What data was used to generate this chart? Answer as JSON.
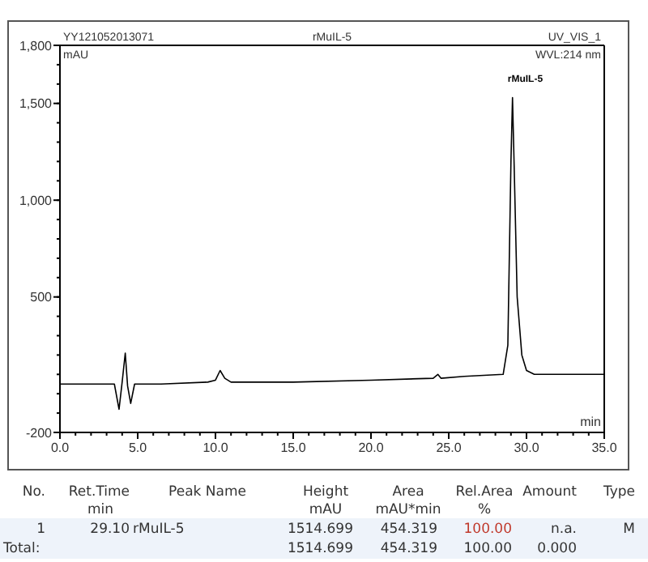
{
  "chart_data": {
    "type": "line",
    "title": "rMuIL-5",
    "xlabel": "min",
    "ylabel": "mAU",
    "x": [
      0,
      3.5,
      3.8,
      4.0,
      4.2,
      4.35,
      4.55,
      4.8,
      5.0,
      6.5,
      9.5,
      10.0,
      10.3,
      10.6,
      11,
      15,
      20,
      24,
      24.3,
      24.5,
      26,
      28.5,
      28.8,
      29.0,
      29.1,
      29.2,
      29.4,
      29.7,
      30.0,
      30.5,
      32,
      35
    ],
    "series": [
      {
        "color": "#000000",
        "values": [
          50,
          50,
          -80,
          60,
          210,
          40,
          -50,
          50,
          50,
          50,
          60,
          70,
          120,
          80,
          60,
          60,
          70,
          80,
          100,
          80,
          90,
          100,
          250,
          1200,
          1530,
          1200,
          500,
          200,
          120,
          100,
          100,
          100
        ]
      }
    ],
    "xlim": [
      0,
      35
    ],
    "xticks": [
      {
        "value": 0,
        "label": "0.0"
      },
      {
        "value": 5,
        "label": "5.0"
      },
      {
        "value": 10,
        "label": "10.0"
      },
      {
        "value": 15,
        "label": "15.0"
      },
      {
        "value": 20,
        "label": "20.0"
      },
      {
        "value": 25,
        "label": "25.0"
      },
      {
        "value": 30,
        "label": "30.0"
      },
      {
        "value": 35,
        "label": "35.0"
      }
    ],
    "ylim": [
      -200,
      1800
    ],
    "yticks": [
      -200,
      500,
      {
        "value": 1000,
        "label": "1,000"
      },
      {
        "value": 1500,
        "label": "1,500"
      },
      {
        "value": 1800,
        "label": "1,800"
      }
    ],
    "grid": false,
    "marker": "none",
    "line_style": "solid",
    "annotations": [
      "YY121052013071",
      "UV_VIS_1",
      "WVL:214 nm",
      {
        "text": "rMuIL-5",
        "x": 29.1,
        "y": 1530
      },
      "No.",
      "Ret.Time",
      "Peak Name",
      "Height",
      "Area",
      "Rel.Area",
      "Amount",
      "Type",
      "min",
      "mAU",
      "mAU*min",
      "%",
      "1",
      "29.10",
      "rMuIL-5",
      "1514.699",
      "454.319",
      "100.00",
      "n.a.",
      "M",
      "Total:",
      "1514.699",
      "454.319",
      "100.00",
      "0.000"
    ]
  }
}
